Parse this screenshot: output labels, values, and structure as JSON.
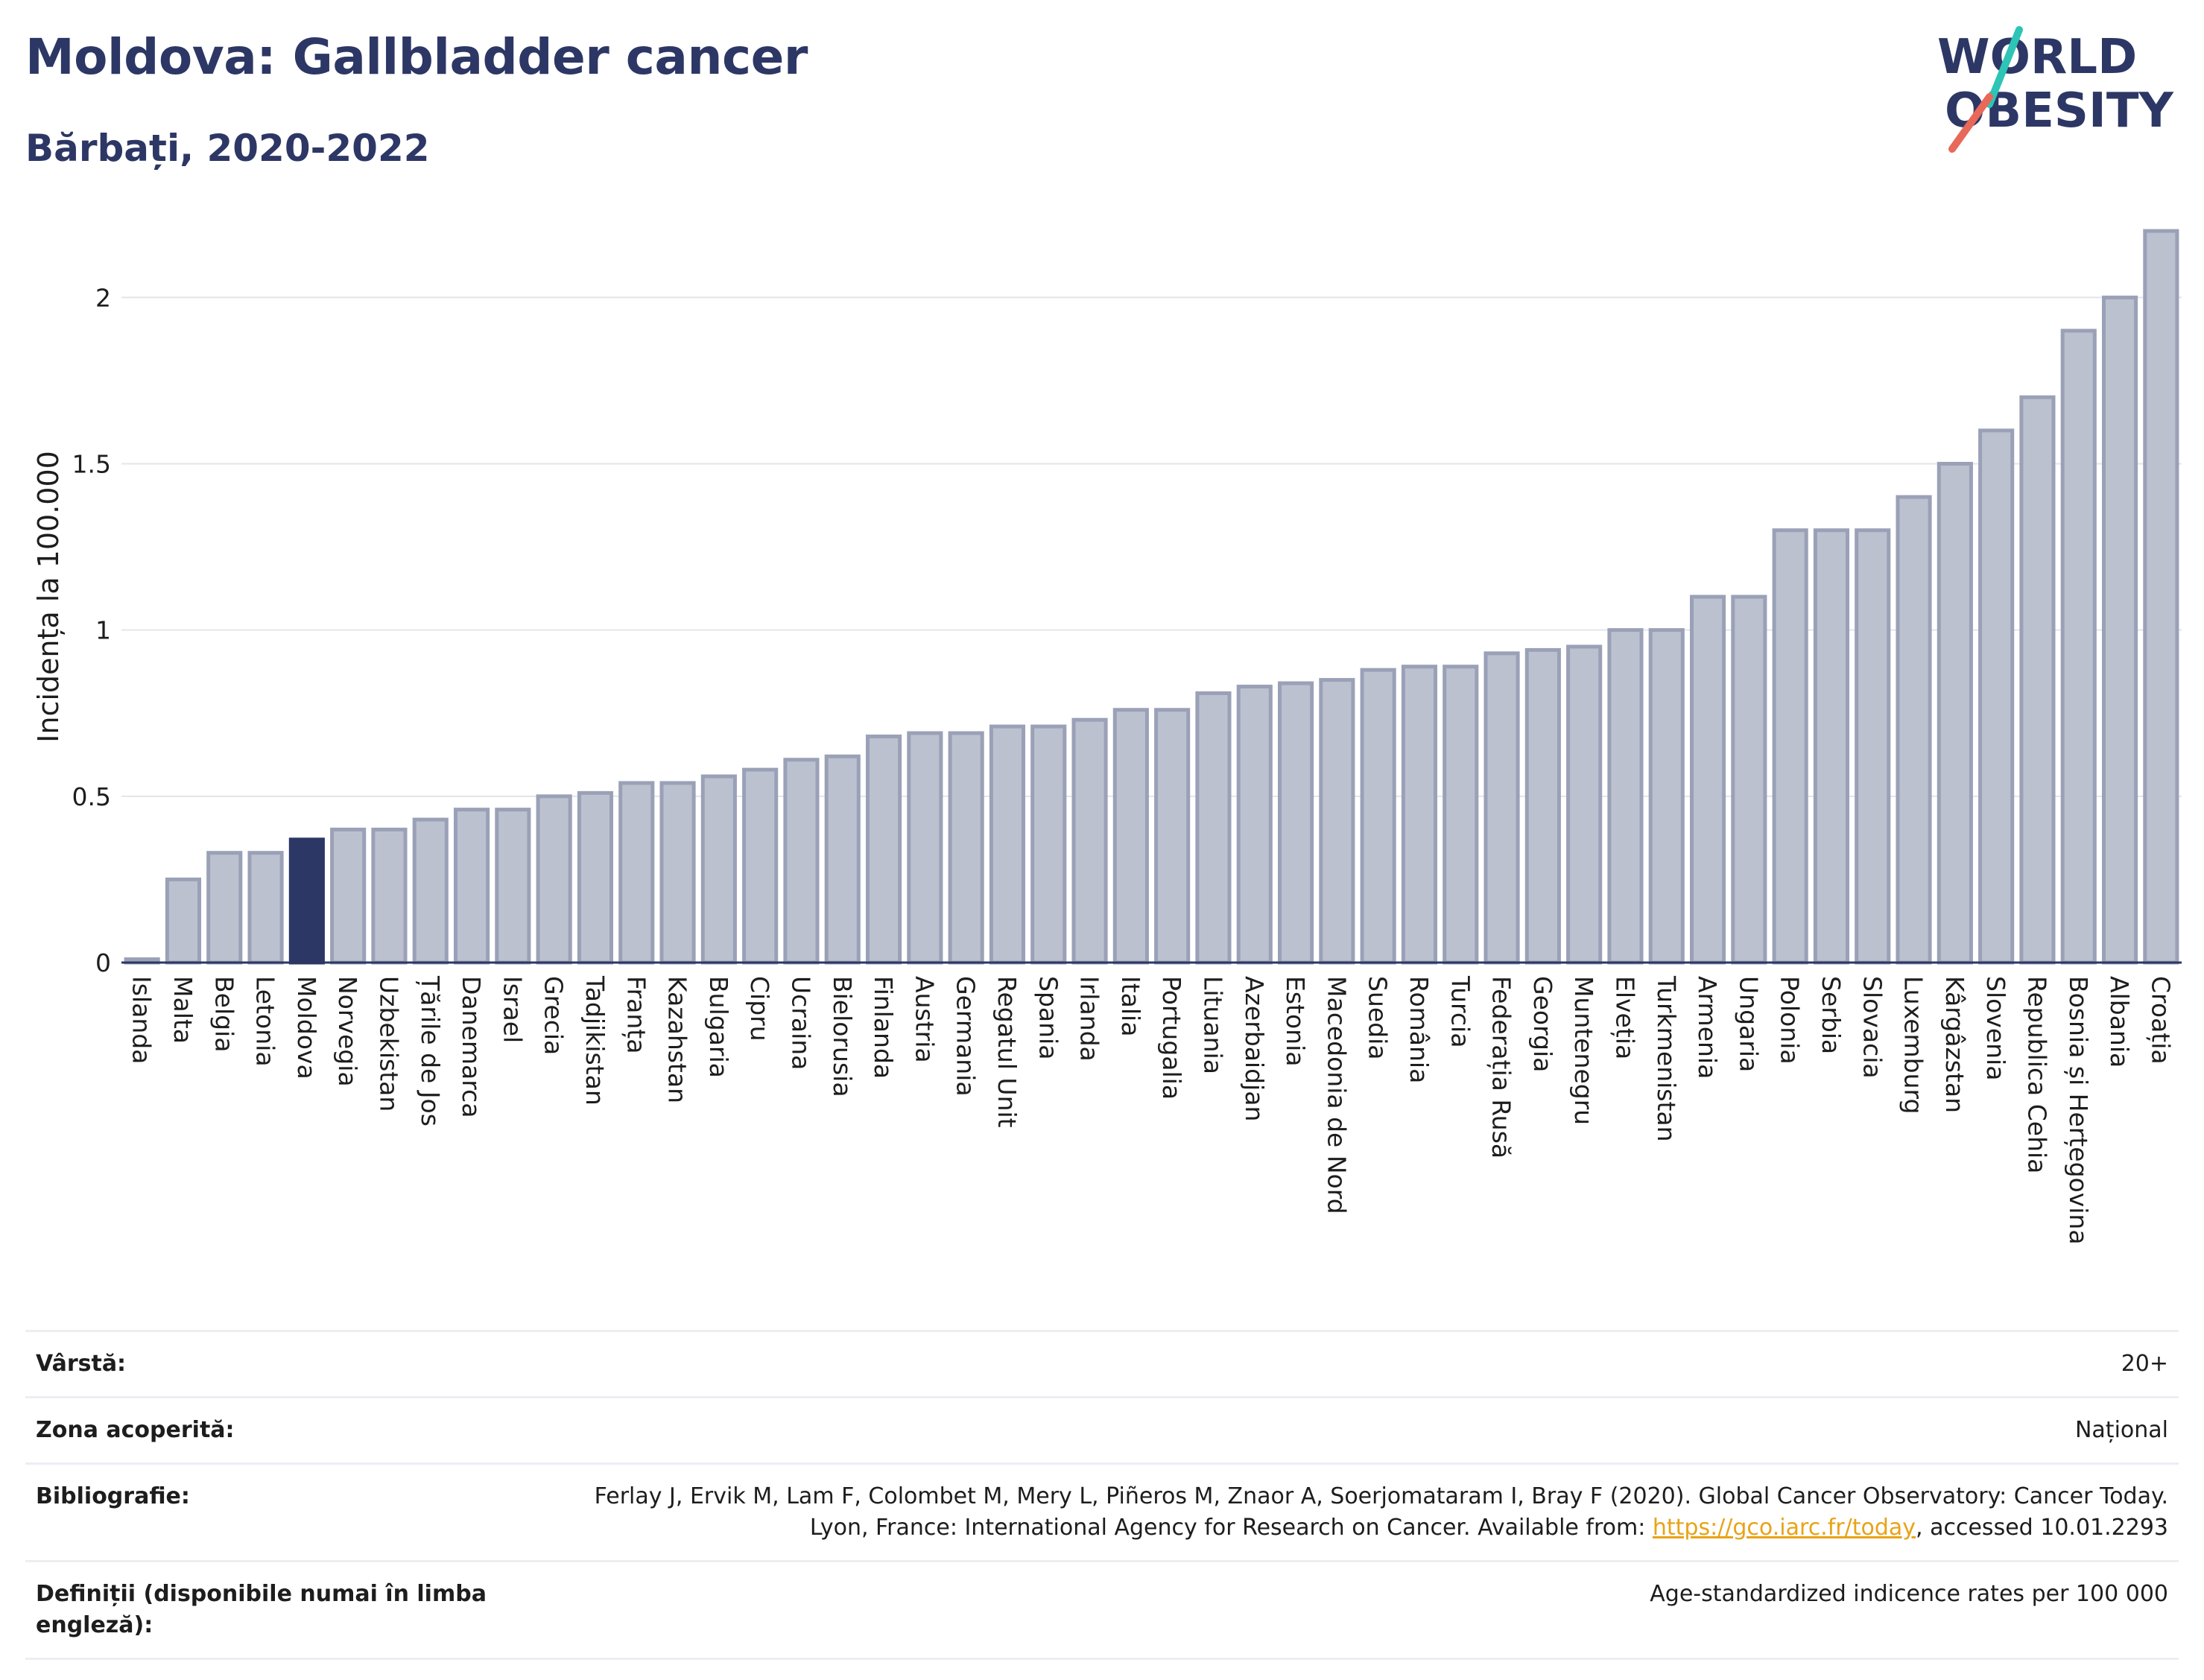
{
  "header": {
    "title": "Moldova: Gallbladder cancer",
    "subtitle": "Bărbați, 2020-2022"
  },
  "logo": {
    "line1": "WORLD",
    "line2": "OBESITY",
    "accent_colors": [
      "#2ec4b6",
      "#e8685a"
    ]
  },
  "colors": {
    "bar": "#bcc1cf",
    "bar_stroke": "#9aa1b7",
    "highlight": "#2d3765",
    "grid": "#e3e5ea",
    "axis": "#2d3765"
  },
  "chart_data": {
    "type": "bar",
    "ylabel": "Incidența la 100.000",
    "xlabel": "",
    "ylim": [
      0,
      2.2
    ],
    "yticks": [
      0,
      0.5,
      1,
      1.5,
      2
    ],
    "ytick_labels": [
      "0",
      "0.5",
      "1",
      "1.5",
      "2"
    ],
    "grid": true,
    "highlight": "Moldova",
    "categories": [
      "Islanda",
      "Malta",
      "Belgia",
      "Letonia",
      "Moldova",
      "Norvegia",
      "Uzbekistan",
      "Țările de Jos",
      "Danemarca",
      "Israel",
      "Grecia",
      "Tadjikistan",
      "Franța",
      "Kazahstan",
      "Bulgaria",
      "Cipru",
      "Ucraina",
      "Bielorusia",
      "Finlanda",
      "Austria",
      "Germania",
      "Regatul Unit",
      "Spania",
      "Irlanda",
      "Italia",
      "Portugalia",
      "Lituania",
      "Azerbaidjan",
      "Estonia",
      "Macedonia de Nord",
      "Suedia",
      "România",
      "Turcia",
      "Federația Rusă",
      "Georgia",
      "Muntenegru",
      "Elveția",
      "Turkmenistan",
      "Armenia",
      "Ungaria",
      "Polonia",
      "Serbia",
      "Slovacia",
      "Luxemburg",
      "Kârgâzstan",
      "Slovenia",
      "Republica Cehia",
      "Bosnia și Herțegovina",
      "Albania",
      "Croația"
    ],
    "values": [
      0.01,
      0.25,
      0.33,
      0.33,
      0.37,
      0.4,
      0.4,
      0.43,
      0.46,
      0.46,
      0.5,
      0.51,
      0.54,
      0.54,
      0.56,
      0.58,
      0.61,
      0.62,
      0.68,
      0.69,
      0.69,
      0.71,
      0.71,
      0.73,
      0.76,
      0.76,
      0.81,
      0.83,
      0.84,
      0.85,
      0.88,
      0.89,
      0.89,
      0.93,
      0.94,
      0.95,
      1.0,
      1.0,
      1.1,
      1.1,
      1.3,
      1.3,
      1.3,
      1.4,
      1.5,
      1.6,
      1.7,
      1.9,
      2.0,
      2.2
    ]
  },
  "info": [
    {
      "key": "Vârstă:",
      "value": "20+"
    },
    {
      "key": "Zona acoperită:",
      "value": "Național"
    },
    {
      "key": "Bibliografie:",
      "value_pre": "Ferlay J, Ervik M, Lam F, Colombet M, Mery L, Piñeros M, Znaor A, Soerjomataram I, Bray F (2020). Global Cancer Observatory: Cancer Today. Lyon, France: International Agency for Research on Cancer. Available from: ",
      "link": "https://gco.iarc.fr/today",
      "value_post": ", accessed 10.01.2293"
    },
    {
      "key": "Definiții (disponibile numai în limba engleză):",
      "value": "Age-standardized indicence rates per 100 000"
    }
  ]
}
